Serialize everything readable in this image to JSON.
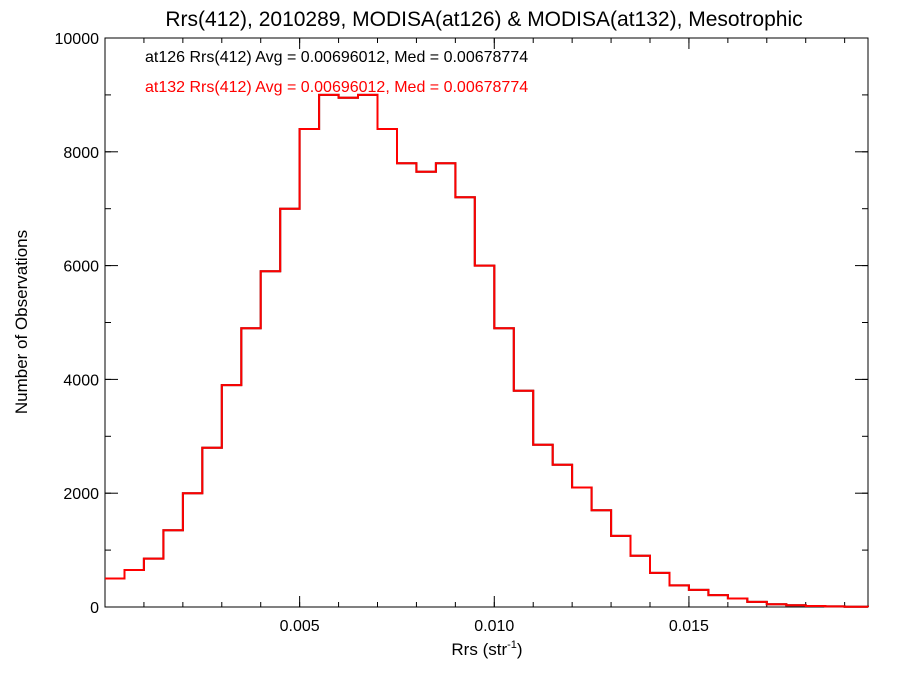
{
  "chart_data": {
    "type": "line",
    "step": true,
    "title": "Rrs(412), 2010289, MODISA(at126) & MODISA(at132), Mesotrophic",
    "xlabel": "Rrs (str",
    "xlabel_sup": "-1",
    "xlabel_end": ")",
    "ylabel": "Number of Observations",
    "xlim": [
      0.0,
      0.0196
    ],
    "ylim": [
      0,
      10000
    ],
    "x_ticks": [
      {
        "value": 0.005,
        "label": "0.005"
      },
      {
        "value": 0.01,
        "label": "0.010"
      },
      {
        "value": 0.015,
        "label": "0.015"
      }
    ],
    "y_ticks": [
      {
        "value": 0,
        "label": "0"
      },
      {
        "value": 2000,
        "label": "2000"
      },
      {
        "value": 4000,
        "label": "4000"
      },
      {
        "value": 6000,
        "label": "6000"
      },
      {
        "value": 8000,
        "label": "8000"
      },
      {
        "value": 10000,
        "label": "10000"
      }
    ],
    "x_minor_step": 0.001,
    "y_minor_step": 1000,
    "grid": false,
    "annotations": [
      {
        "text": "at126 Rrs(412) Avg = 0.00696012, Med = 0.00678774",
        "color": "#000000"
      },
      {
        "text": "at132 Rrs(412) Avg = 0.00696012, Med = 0.00678774",
        "color": "#ff0000"
      }
    ],
    "series": [
      {
        "color": "#000000",
        "x": [
          0.0,
          0.0005,
          0.001,
          0.0015,
          0.002,
          0.0025,
          0.003,
          0.0035,
          0.004,
          0.0045,
          0.005,
          0.0055,
          0.006,
          0.0065,
          0.007,
          0.0075,
          0.008,
          0.0085,
          0.009,
          0.0095,
          0.01,
          0.0105,
          0.011,
          0.0115,
          0.012,
          0.0125,
          0.013,
          0.0135,
          0.014,
          0.0145,
          0.015,
          0.0155,
          0.016,
          0.0165,
          0.017,
          0.0175,
          0.018,
          0.0185,
          0.019,
          0.0196
        ],
        "y": [
          500,
          650,
          850,
          1350,
          2000,
          2800,
          3900,
          4900,
          5900,
          7000,
          8400,
          9000,
          8950,
          9000,
          8400,
          7800,
          7650,
          7800,
          7200,
          6000,
          4900,
          3800,
          2850,
          2500,
          2100,
          1700,
          1250,
          900,
          600,
          380,
          300,
          210,
          150,
          90,
          50,
          30,
          18,
          10,
          5,
          2
        ]
      },
      {
        "color": "#ff0000",
        "x": [
          0.0,
          0.0005,
          0.001,
          0.0015,
          0.002,
          0.0025,
          0.003,
          0.0035,
          0.004,
          0.0045,
          0.005,
          0.0055,
          0.006,
          0.0065,
          0.007,
          0.0075,
          0.008,
          0.0085,
          0.009,
          0.0095,
          0.01,
          0.0105,
          0.011,
          0.0115,
          0.012,
          0.0125,
          0.013,
          0.0135,
          0.014,
          0.0145,
          0.015,
          0.0155,
          0.016,
          0.0165,
          0.017,
          0.0175,
          0.018,
          0.0185,
          0.019,
          0.0196
        ],
        "y": [
          500,
          650,
          850,
          1350,
          2000,
          2800,
          3900,
          4900,
          5900,
          7000,
          8400,
          9000,
          8950,
          9000,
          8400,
          7800,
          7650,
          7800,
          7200,
          6000,
          4900,
          3800,
          2850,
          2500,
          2100,
          1700,
          1250,
          900,
          600,
          380,
          300,
          210,
          150,
          90,
          50,
          30,
          18,
          10,
          5,
          2
        ]
      }
    ]
  }
}
